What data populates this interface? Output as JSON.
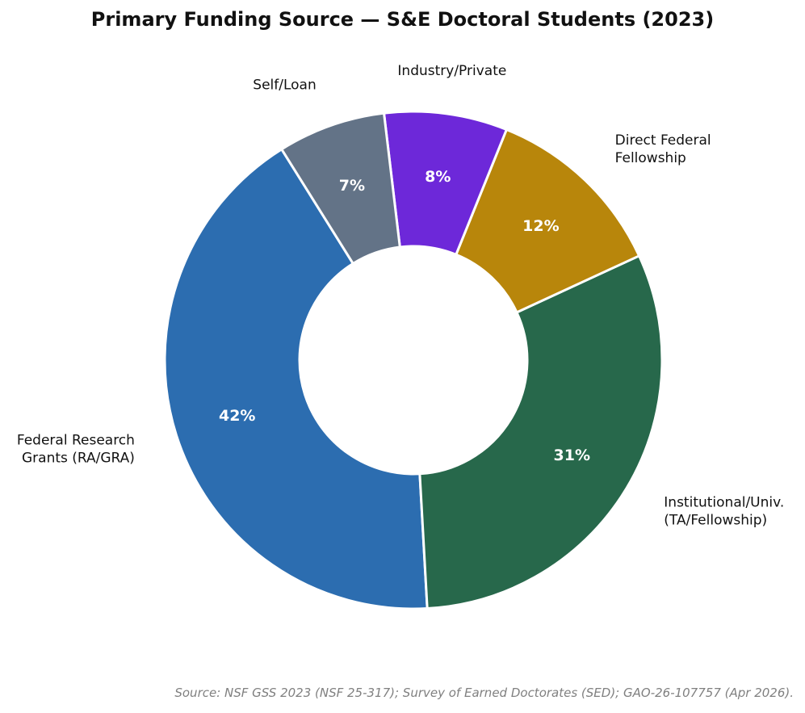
{
  "chart_data": {
    "type": "pie",
    "subtype": "donut",
    "title": "Primary Funding Source — S&E Doctoral Students (2023)",
    "source_note": "Source: NSF GSS 2023 (NSF 25-317); Survey of Earned Doctorates (SED); GAO-26-107757 (Apr 2026).",
    "slices": [
      {
        "label": "Federal Research\nGrants (RA/GRA)",
        "value": 42,
        "pct_label": "42%",
        "color": "#2c6db0"
      },
      {
        "label": "Institutional/Univ.\n(TA/Fellowship)",
        "value": 31,
        "pct_label": "31%",
        "color": "#27684b"
      },
      {
        "label": "Direct Federal\nFellowship",
        "value": 12,
        "pct_label": "12%",
        "color": "#b8860b"
      },
      {
        "label": "Industry/Private",
        "value": 8,
        "pct_label": "8%",
        "color": "#6d28d9"
      },
      {
        "label": "Self/Loan",
        "value": 7,
        "pct_label": "7%",
        "color": "#637387"
      }
    ],
    "start_angle_deg": 122,
    "direction": "counterclockwise",
    "legend": "none"
  }
}
